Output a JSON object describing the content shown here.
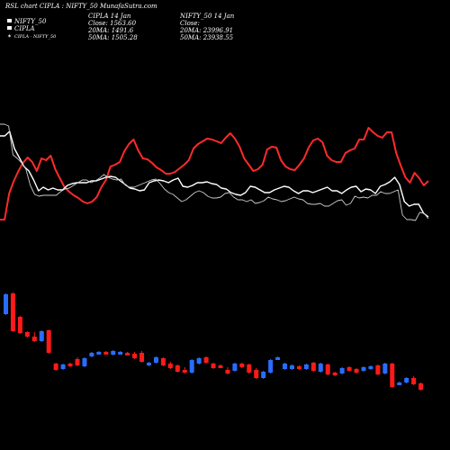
{
  "header": {
    "title": "RSL chart CIPLA : NIFTY_50 MunafaSutra.com",
    "legend": [
      "NIFTY_50",
      "CIPLA",
      "CIPLA - NIFTY_50"
    ],
    "info_left": [
      "CIPLA 14 Jan",
      "Close: 1563.60",
      "20MA: 1491.6",
      "50MA: 1505.28"
    ],
    "info_right": [
      "NIFTY_50 14 Jan",
      "Close:",
      "20MA: 23996.91",
      "50MA: 23938.55"
    ]
  },
  "colors": {
    "background": "#000000",
    "rsl_line": "#ff2a2a",
    "nifty_line": "#ffffff",
    "ratio_line": "#cccccc",
    "bull": "#2a6cff",
    "bear": "#ff1a1a"
  },
  "chart_data": {
    "type": "line+candlestick",
    "series": [
      {
        "name": "CIPLA",
        "color": "#ff2a2a",
        "values": [
          244,
          244,
          215,
          201,
          190,
          181,
          175,
          180,
          190,
          176,
          178,
          173,
          188,
          198,
          208,
          213,
          217,
          220,
          224,
          226,
          224,
          219,
          208,
          200,
          185,
          183,
          180,
          168,
          160,
          155,
          167,
          176,
          177,
          181,
          186,
          189,
          193,
          193,
          191,
          187,
          183,
          178,
          165,
          160,
          157,
          154,
          155,
          157,
          159,
          153,
          148,
          154,
          163,
          176,
          183,
          190,
          188,
          183,
          166,
          163,
          164,
          178,
          185,
          188,
          189,
          183,
          176,
          164,
          156,
          154,
          158,
          173,
          178,
          180,
          180,
          170,
          167,
          165,
          155,
          155,
          142,
          147,
          151,
          153,
          147,
          147,
          170,
          184,
          197,
          203,
          192,
          198,
          206,
          201
        ]
      },
      {
        "name": "NIFTY_50",
        "color": "#ffffff",
        "values": [
          151,
          151,
          146,
          165,
          175,
          185,
          190,
          200,
          212,
          208,
          211,
          209,
          211,
          211,
          206,
          204,
          203,
          203,
          203,
          201,
          201,
          199,
          197,
          196,
          197,
          201,
          205,
          209,
          210,
          212,
          211,
          203,
          201,
          200,
          201,
          203,
          200,
          198,
          207,
          208,
          206,
          203,
          203,
          202,
          204,
          205,
          209,
          210,
          214,
          216,
          217,
          214,
          207,
          208,
          211,
          214,
          214,
          211,
          209,
          207,
          208,
          212,
          215,
          212,
          212,
          214,
          212,
          210,
          208,
          212,
          212,
          215,
          211,
          208,
          207,
          213,
          210,
          211,
          215,
          207,
          205,
          202,
          197,
          205,
          224,
          229,
          227,
          227,
          237,
          241
        ]
      },
      {
        "name": "CIPLA - NIFTY_50",
        "color": "#cccccc",
        "values": [
          138,
          138,
          140,
          172,
          176,
          181,
          188,
          206,
          216,
          218,
          217,
          217,
          217,
          217,
          213,
          210,
          209,
          206,
          203,
          200,
          200,
          203,
          201,
          198,
          194,
          197,
          199,
          200,
          199,
          206,
          208,
          208,
          206,
          204,
          202,
          200,
          199,
          204,
          210,
          214,
          216,
          220,
          224,
          222,
          218,
          214,
          212,
          214,
          218,
          220,
          220,
          219,
          215,
          214,
          219,
          222,
          222,
          224,
          222,
          226,
          225,
          223,
          219,
          221,
          222,
          224,
          223,
          221,
          219,
          221,
          222,
          226,
          227,
          227,
          226,
          229,
          229,
          226,
          223,
          222,
          228,
          226,
          218,
          220,
          219,
          220,
          217,
          217,
          213,
          215,
          215,
          213,
          211,
          239,
          244,
          244,
          245,
          236,
          237,
          243
        ]
      }
    ],
    "candles": [
      [
        "u",
        349,
        333,
        327,
        327
      ],
      [
        "d",
        326,
        326,
        368,
        368
      ],
      [
        "d",
        352,
        358,
        370,
        370
      ],
      [
        "d",
        369,
        369,
        374,
        374
      ],
      [
        "d",
        374,
        370,
        379,
        379
      ],
      [
        "u",
        379,
        378,
        369,
        368
      ],
      [
        "d",
        367,
        370,
        392,
        392
      ],
      [
        "d",
        404,
        404,
        411,
        411
      ],
      [
        "u",
        410,
        410,
        405,
        405
      ],
      [
        "d",
        404,
        405,
        407,
        407
      ],
      [
        "d",
        399,
        398,
        406,
        406
      ],
      [
        "u",
        407,
        407,
        398,
        398
      ],
      [
        "u",
        396,
        396,
        392,
        392
      ],
      [
        "u",
        392,
        392,
        391,
        391
      ],
      [
        "d",
        391,
        391,
        392,
        392
      ],
      [
        "u",
        394,
        392,
        390,
        390
      ],
      [
        "u",
        393,
        393,
        391,
        391
      ],
      [
        "d",
        392,
        392,
        393,
        393
      ],
      [
        "d",
        393,
        392,
        398,
        398
      ],
      [
        "d",
        392,
        391,
        402,
        402
      ],
      [
        "u",
        406,
        406,
        403,
        403
      ],
      [
        "u",
        403,
        403,
        397,
        397
      ],
      [
        "d",
        398,
        398,
        406,
        406
      ],
      [
        "d",
        404,
        403,
        409,
        409
      ],
      [
        "d",
        406,
        406,
        413,
        413
      ],
      [
        "d",
        411,
        409,
        414,
        414
      ],
      [
        "u",
        414,
        414,
        400,
        400
      ],
      [
        "u",
        404,
        404,
        398,
        398
      ],
      [
        "d",
        397,
        397,
        403,
        403
      ],
      [
        "d",
        404,
        404,
        409,
        409
      ],
      [
        "d",
        406,
        406,
        408,
        408
      ],
      [
        "d",
        411,
        409,
        415,
        415
      ],
      [
        "u",
        412,
        412,
        404,
        404
      ],
      [
        "d",
        404,
        404,
        408,
        408
      ],
      [
        "d",
        405,
        405,
        414,
        414
      ],
      [
        "d",
        411,
        410,
        420,
        420
      ],
      [
        "u",
        420,
        418,
        413,
        413
      ],
      [
        "u",
        414,
        414,
        400,
        400
      ],
      [
        "u",
        399,
        399,
        397,
        397
      ],
      [
        "u",
        410,
        409,
        404,
        404
      ],
      [
        "u",
        410,
        410,
        406,
        406
      ],
      [
        "d",
        407,
        407,
        410,
        410
      ],
      [
        "u",
        410,
        410,
        405,
        405
      ],
      [
        "d",
        403,
        403,
        412,
        412
      ],
      [
        "u",
        413,
        412,
        404,
        404
      ],
      [
        "d",
        405,
        405,
        416,
        416
      ],
      [
        "d",
        414,
        414,
        417,
        417
      ],
      [
        "u",
        415,
        415,
        409,
        409
      ],
      [
        "d",
        408,
        408,
        412,
        412
      ],
      [
        "d",
        410,
        410,
        414,
        414
      ],
      [
        "u",
        412,
        412,
        408,
        408
      ],
      [
        "u",
        409,
        410,
        407,
        407
      ],
      [
        "d",
        406,
        406,
        416,
        416
      ],
      [
        "u",
        415,
        415,
        404,
        404
      ],
      [
        "d",
        404,
        404,
        430,
        430
      ],
      [
        "u",
        427,
        427,
        425,
        425
      ],
      [
        "u",
        425,
        425,
        420,
        420
      ],
      [
        "d",
        420,
        419,
        427,
        427
      ],
      [
        "d",
        426,
        426,
        433,
        433
      ]
    ]
  }
}
